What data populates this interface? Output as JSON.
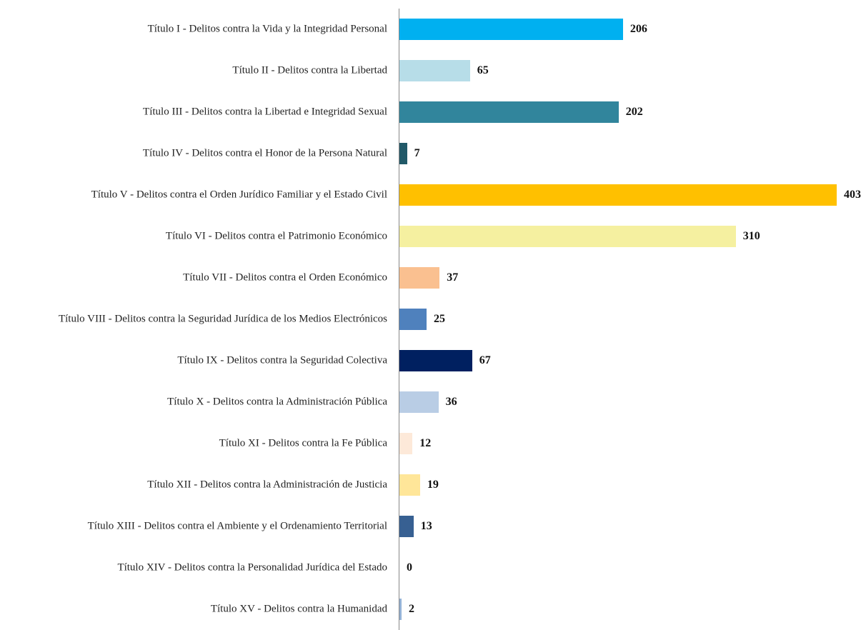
{
  "chart_data": {
    "type": "bar",
    "orientation": "horizontal",
    "categories": [
      "Título I - Delitos contra la Vida y la Integridad Personal",
      "Título II - Delitos contra la Libertad",
      "Título III - Delitos contra la Libertad e Integridad Sexual",
      "Título IV - Delitos contra el Honor de la Persona  Natural",
      "Título V - Delitos contra el Orden Jurídico Familiar y el Estado Civil",
      "Título VI - Delitos contra el Patrimonio Económico",
      "Título VII - Delitos contra el Orden Económico",
      "Título VIII - Delitos  contra la Seguridad Jurídica de los Medios Electrónicos",
      "Título IX - Delitos contra la Seguridad Colectiva",
      "Título X - Delitos contra la Administración Pública",
      "Título XI - Delitos contra la Fe Pública",
      "Título XII - Delitos contra la Administración de Justicia",
      "Título XIII - Delitos contra el Ambiente y el Ordenamiento Territorial",
      "Título XIV - Delitos contra la Personalidad Jurídica del Estado",
      "Título XV - Delitos contra la Humanidad"
    ],
    "values": [
      206,
      65,
      202,
      7,
      403,
      310,
      37,
      25,
      67,
      36,
      12,
      19,
      13,
      0,
      2
    ],
    "colors": [
      "#00b0f0",
      "#b7dde8",
      "#31859c",
      "#215968",
      "#ffc000",
      "#f5f0a0",
      "#fac090",
      "#4f81bd",
      "#002060",
      "#b9cde5",
      "#fde9d9",
      "#ffe699",
      "#376092",
      "#95b3d7",
      "#95b3d7"
    ]
  }
}
